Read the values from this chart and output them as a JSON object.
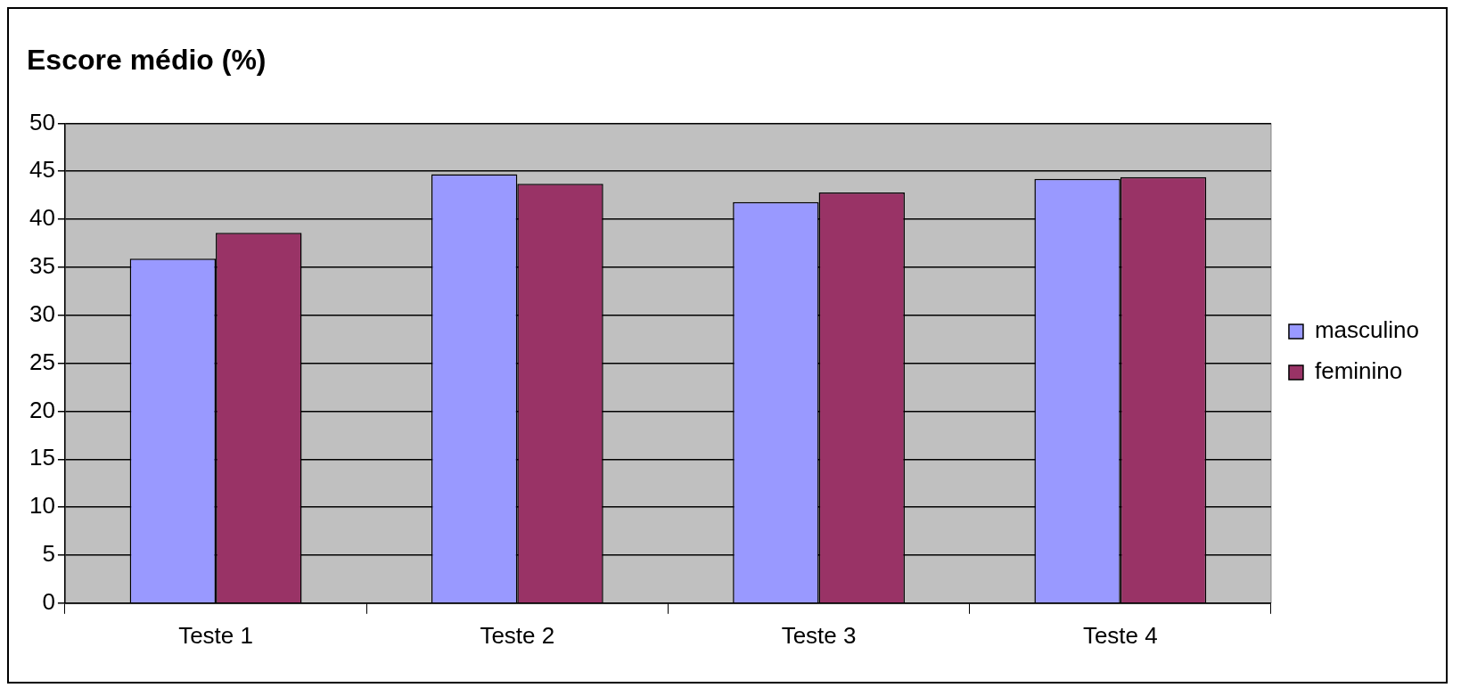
{
  "chart_data": {
    "type": "bar",
    "title": "Escore médio (%)",
    "categories": [
      "Teste 1",
      "Teste 2",
      "Teste 3",
      "Teste 4"
    ],
    "series": [
      {
        "name": "masculino",
        "color": "#9999ff",
        "values": [
          35.9,
          44.7,
          41.8,
          44.2
        ]
      },
      {
        "name": "feminino",
        "color": "#993366",
        "values": [
          38.6,
          43.7,
          42.8,
          44.4
        ]
      }
    ],
    "ylim": [
      0,
      50
    ],
    "yticks": [
      0,
      5,
      10,
      15,
      20,
      25,
      30,
      35,
      40,
      45,
      50
    ],
    "grid": "y",
    "legend": "right"
  }
}
